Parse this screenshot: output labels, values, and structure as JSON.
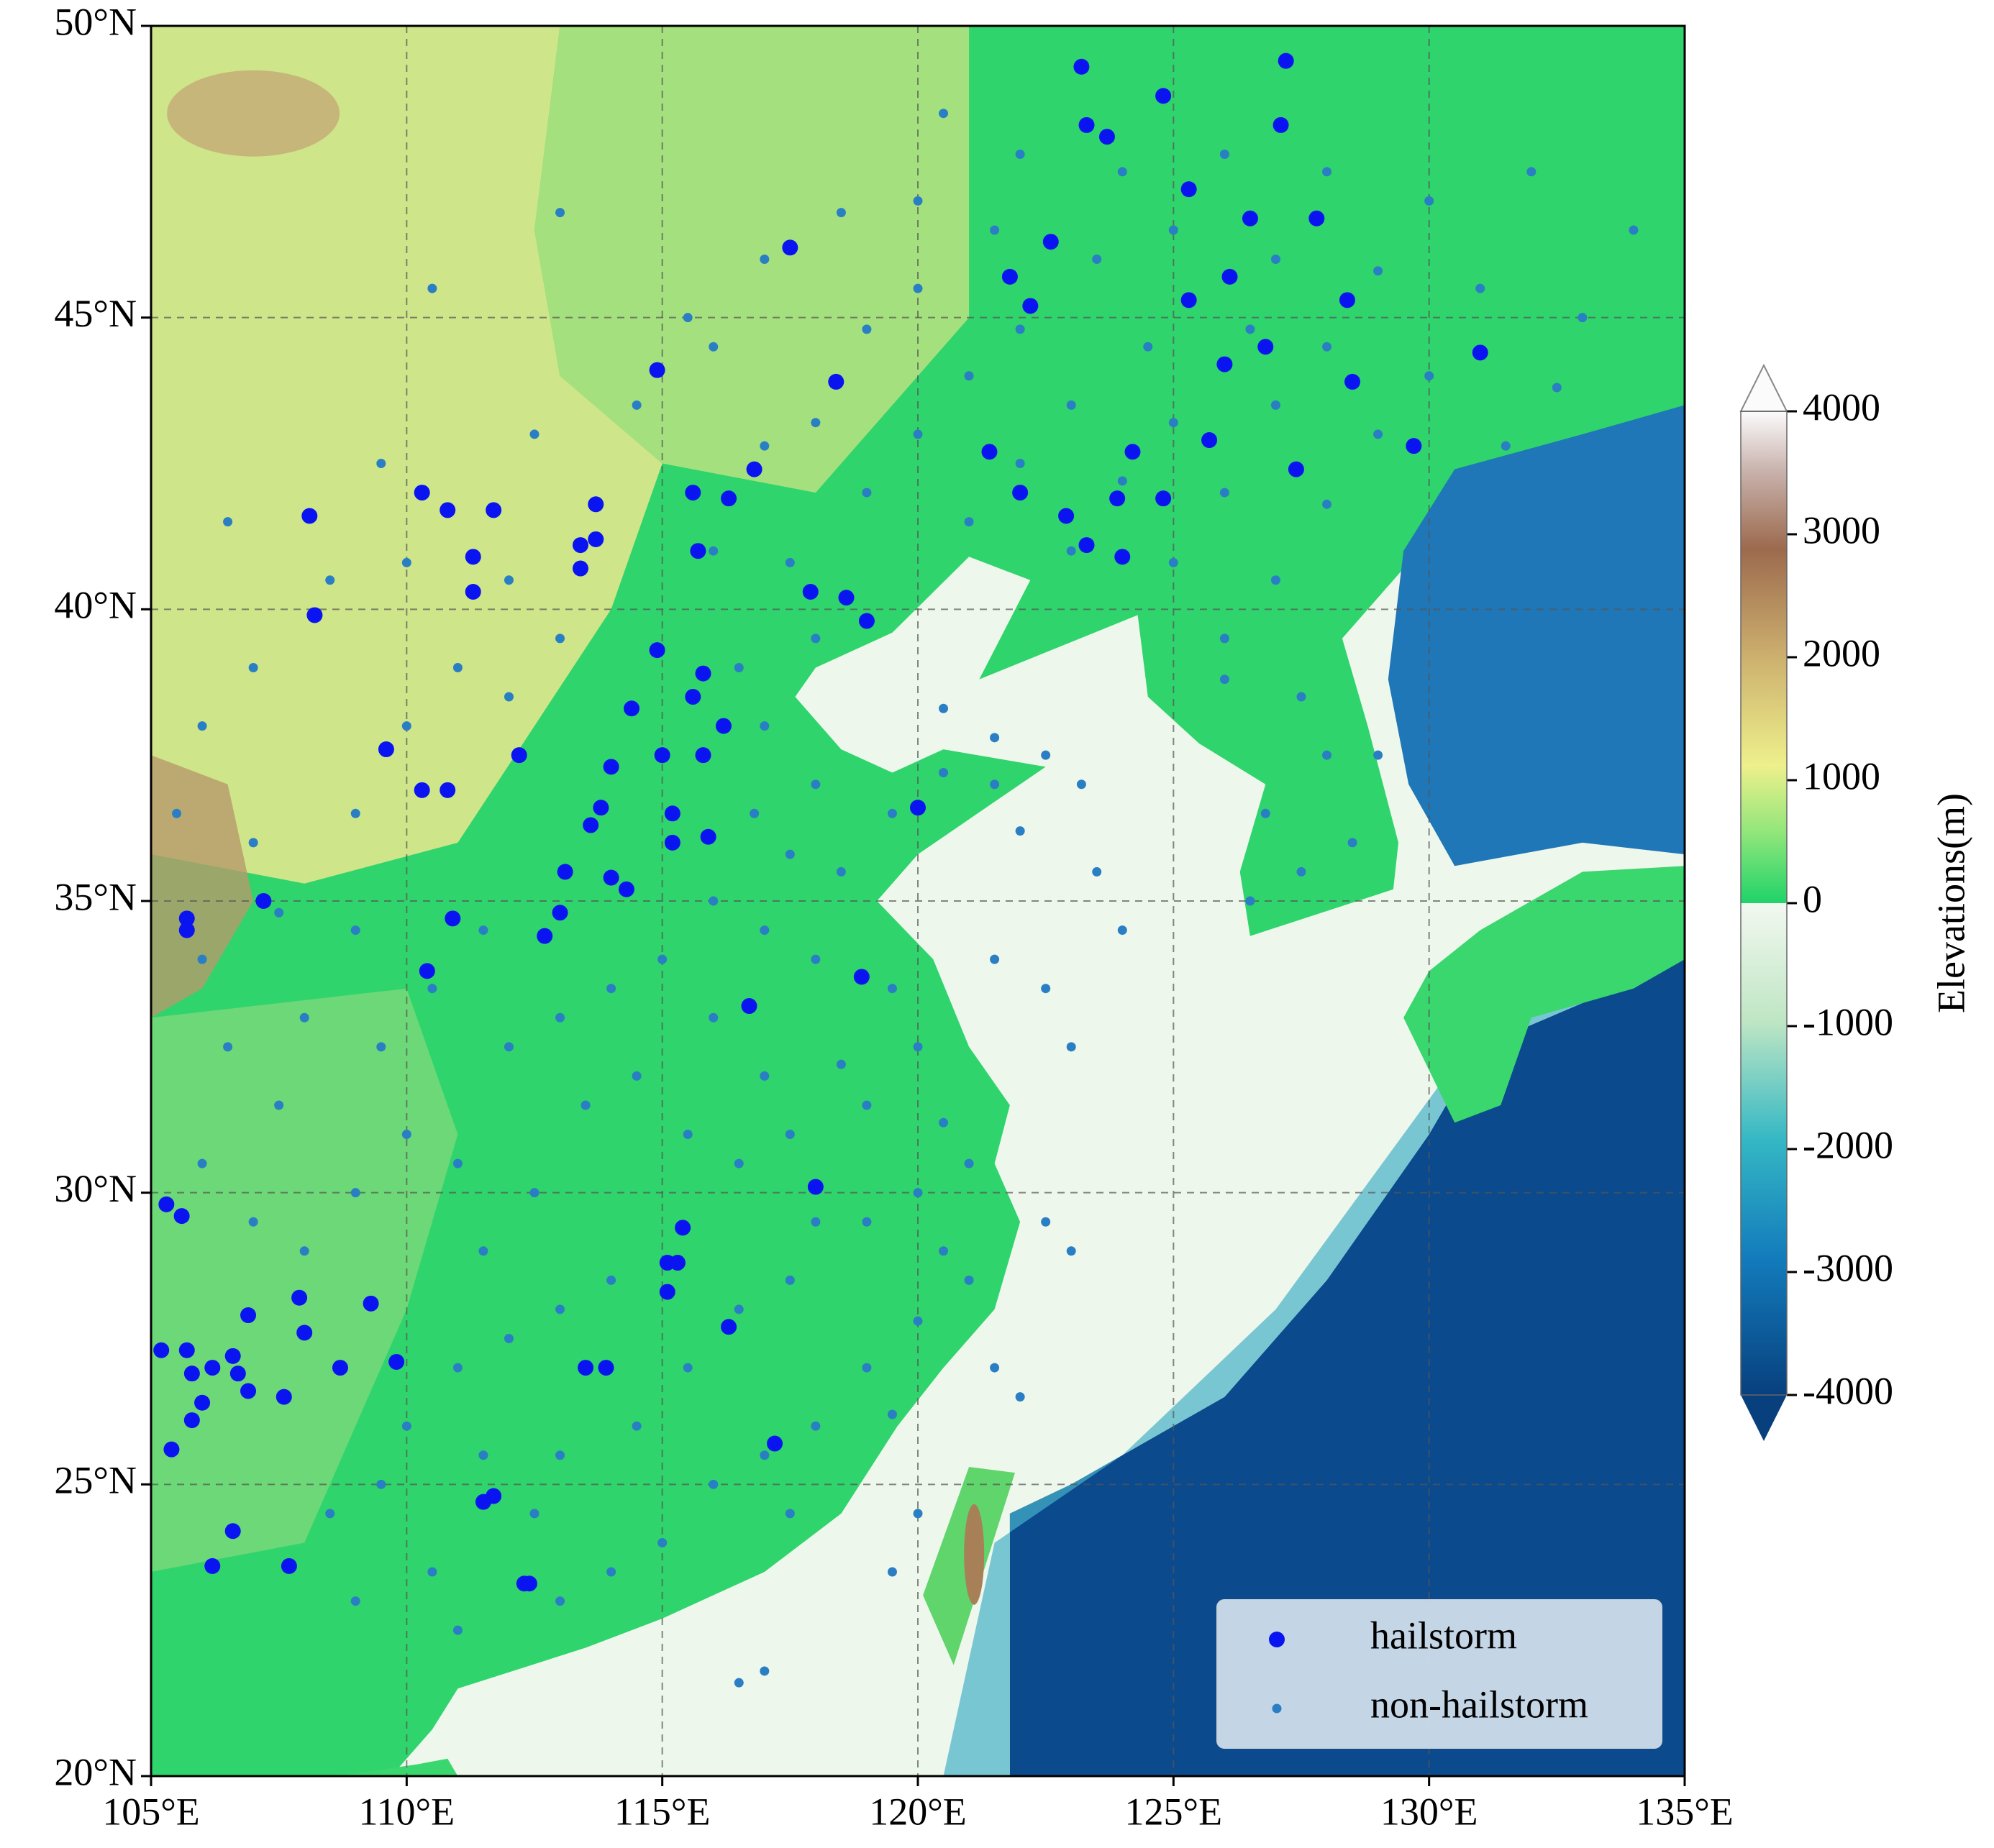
{
  "chart_data": {
    "type": "scatter",
    "xlim": [
      105,
      135
    ],
    "ylim": [
      20,
      50
    ],
    "xticks": [
      {
        "value": 105,
        "label": "105°E"
      },
      {
        "value": 110,
        "label": "110°E"
      },
      {
        "value": 115,
        "label": "115°E"
      },
      {
        "value": 120,
        "label": "120°E"
      },
      {
        "value": 125,
        "label": "125°E"
      },
      {
        "value": 130,
        "label": "130°E"
      },
      {
        "value": 135,
        "label": "135°E"
      }
    ],
    "yticks": [
      {
        "value": 20,
        "label": "20°N"
      },
      {
        "value": 25,
        "label": "25°N"
      },
      {
        "value": 30,
        "label": "30°N"
      },
      {
        "value": 35,
        "label": "35°N"
      },
      {
        "value": 40,
        "label": "40°N"
      },
      {
        "value": 45,
        "label": "45°N"
      },
      {
        "value": 50,
        "label": "50°N"
      }
    ],
    "grid": true,
    "legend": "lower right",
    "series": [
      {
        "name": "non-hailstorm",
        "color": "#2a7fc4",
        "x": [
          120.5,
          122,
          124,
          126,
          128,
          130,
          132,
          134,
          121.5,
          123.5,
          125,
          127,
          129,
          131,
          133,
          120,
          122,
          124.5,
          126.5,
          128,
          130,
          132.5,
          119,
          121,
          123,
          125,
          127,
          129,
          131.5,
          118,
          120,
          122,
          124,
          126,
          128,
          117,
          119,
          121,
          123,
          125,
          127,
          126,
          127.5,
          128,
          126.8,
          127.5,
          126.5,
          128.5,
          129,
          126,
          116,
          117.5,
          118,
          116.5,
          117,
          118,
          116.8,
          117.5,
          118.5,
          119.5,
          120.5,
          121.5,
          116,
          117,
          118,
          119.5,
          120,
          118.5,
          117,
          116,
          115,
          114,
          113,
          112,
          114.5,
          113.5,
          115.5,
          116.5,
          117.5,
          119,
          120.5,
          121,
          120,
          119,
          120.5,
          121,
          120,
          119,
          119.5,
          118,
          117,
          116,
          117.5,
          115,
          114,
          113,
          111,
          112.5,
          111.5,
          113,
          114.5,
          115.5,
          116.5,
          117.5,
          118,
          114,
          113,
          112,
          111,
          110,
          109.5,
          108.5,
          110.5,
          109,
          111.5,
          112.5,
          111,
          110,
          109,
          108,
          107,
          106,
          107.5,
          106.5,
          108,
          109.5,
          110.5,
          111.5,
          109,
          107.5,
          106,
          107,
          109,
          110,
          111,
          112,
          113,
          112,
          110,
          108.5,
          107,
          106,
          105.5,
          106.5,
          109.5,
          112.5,
          114.5,
          116,
          113,
          110.5,
          115.5,
          117,
          118.5,
          120,
          120.5,
          121.5,
          122.5,
          123.2,
          122,
          123.5,
          124,
          121.5,
          122.5,
          123,
          122.5,
          123,
          121.5,
          122,
          120,
          119.5,
          117,
          116.5
        ],
        "values": [
          48.5,
          47.8,
          47.5,
          47.8,
          47.5,
          47,
          47.5,
          46.5,
          46.5,
          46,
          46.5,
          46,
          45.8,
          45.5,
          45,
          45.5,
          44.8,
          44.5,
          44.8,
          44.5,
          44,
          43.8,
          44.8,
          44,
          43.5,
          43.2,
          43.5,
          43,
          42.8,
          43.2,
          43,
          42.5,
          42.2,
          42,
          41.8,
          42.8,
          42,
          41.5,
          41,
          40.8,
          40.5,
          39.5,
          38.5,
          37.5,
          36.5,
          35.5,
          35,
          36,
          37.5,
          38.8,
          41,
          40.8,
          39.5,
          39,
          38,
          37,
          36.5,
          35.8,
          35.5,
          36.5,
          37.2,
          37,
          35,
          34.5,
          34,
          33.5,
          32.5,
          32.2,
          32,
          33,
          34,
          33.5,
          33,
          32.5,
          32,
          31.5,
          31,
          30.5,
          31,
          31.5,
          31.2,
          30.5,
          30,
          29.5,
          29,
          28.5,
          27.8,
          27,
          26.2,
          26,
          25.5,
          25,
          24.5,
          24,
          23.5,
          23,
          22.5,
          24.5,
          25.5,
          25.5,
          26,
          27,
          28,
          28.5,
          29.5,
          28.5,
          28,
          27.5,
          27,
          26,
          25,
          24.5,
          23.5,
          23,
          29,
          30,
          30.5,
          31,
          30,
          29,
          29.5,
          30.5,
          31.5,
          32.5,
          33,
          32.5,
          33.5,
          34.5,
          34.5,
          34.8,
          34,
          36,
          36.5,
          38,
          39,
          38.5,
          39.5,
          40.5,
          40.8,
          40.5,
          39,
          38,
          36.5,
          41.5,
          42.5,
          43,
          43.5,
          44.5,
          46.8,
          45.5,
          45,
          46,
          46.8,
          47,
          38.3,
          37.8,
          37.5,
          37,
          36.2,
          35.5,
          34.5,
          34,
          33.5,
          32.5,
          29.5,
          29,
          27,
          26.5,
          24.5,
          23.5,
          21.8,
          21.6
        ]
      },
      {
        "name": "hailstorm",
        "color": "#0a14f0",
        "x": [
          123.2,
          124.8,
          127.2,
          127.1,
          123.3,
          123.7,
          125.3,
          126.5,
          127.8,
          122.6,
          121.8,
          122.2,
          125.3,
          126.1,
          128.4,
          131,
          126,
          126.8,
          128.5,
          129.7,
          127.4,
          124.2,
          125.7,
          121.4,
          122.9,
          123.9,
          124.8,
          124,
          123.3,
          122,
          118.4,
          117.5,
          114.9,
          116.8,
          115.6,
          116.3,
          115.7,
          110.3,
          110.8,
          111.7,
          108.1,
          113.7,
          113.7,
          113.4,
          111.3,
          113.4,
          108.2,
          111.3,
          117.9,
          118.6,
          119,
          114.9,
          115.8,
          114.4,
          115.6,
          116.2,
          115,
          114,
          115.8,
          109.6,
          110.3,
          110.8,
          112.2,
          113.8,
          115.2,
          115.2,
          113.6,
          115.9,
          113.1,
          114,
          114.3,
          110.9,
          113,
          112.7,
          105.7,
          105.7,
          110.4,
          107.2,
          120,
          118.9,
          116.7,
          105.3,
          105.6,
          109.3,
          107.9,
          108,
          106.9,
          105.2,
          105.7,
          106.6,
          106.2,
          105.8,
          106.7,
          106.9,
          106,
          105.8,
          105.4,
          107.6,
          108.7,
          109.8,
          113.5,
          113.9,
          115.4,
          115.1,
          115.3,
          115.1,
          116.3,
          117.2,
          118,
          106.6,
          106.2,
          107.7,
          111.5,
          111.7,
          112.3,
          112.4
        ],
        "values": [
          49.3,
          48.8,
          49.4,
          48.3,
          48.3,
          48.1,
          47.2,
          46.7,
          46.7,
          46.3,
          45.7,
          45.2,
          45.3,
          45.7,
          45.3,
          44.4,
          44.2,
          44.5,
          43.9,
          42.8,
          42.4,
          42.7,
          42.9,
          42.7,
          41.6,
          41.9,
          41.9,
          40.9,
          41.1,
          42,
          43.9,
          46.2,
          44.1,
          42.4,
          42,
          41.9,
          41,
          42,
          41.7,
          41.7,
          41.6,
          41.8,
          41.2,
          41.1,
          40.9,
          40.7,
          39.9,
          40.3,
          40.3,
          40.2,
          39.8,
          39.3,
          38.9,
          38.3,
          38.5,
          38,
          37.5,
          37.3,
          37.5,
          37.6,
          36.9,
          36.9,
          37.5,
          36.6,
          36.5,
          36,
          36.3,
          36.1,
          35.5,
          35.4,
          35.2,
          34.7,
          34.8,
          34.4,
          34.7,
          34.5,
          33.8,
          35,
          36.6,
          33.7,
          33.2,
          29.8,
          29.6,
          28.1,
          28.2,
          27.6,
          27.9,
          27.3,
          27.3,
          27.2,
          27,
          26.9,
          26.9,
          26.6,
          26.4,
          26.1,
          25.6,
          26.5,
          27,
          27.1,
          27,
          27,
          29.4,
          28.8,
          28.8,
          28.3,
          27.7,
          25.7,
          30.1,
          24.2,
          23.6,
          23.6,
          24.7,
          24.8,
          23.3,
          23.3
        ]
      }
    ],
    "colorbar": {
      "label": "Elevations(m)",
      "lim": [
        -4000,
        4000
      ],
      "ticks": [
        4000,
        3000,
        2000,
        1000,
        0,
        -1000,
        -2000,
        -3000,
        -4000
      ]
    }
  }
}
